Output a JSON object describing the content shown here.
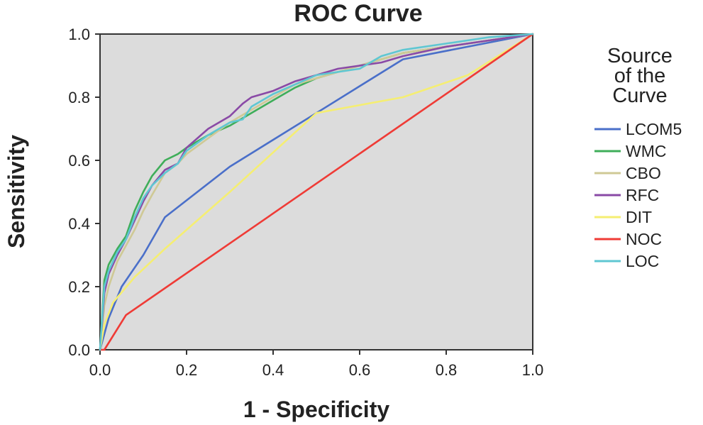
{
  "chart_data": {
    "type": "line",
    "title": "ROC Curve",
    "xlabel": "1 - Specificity",
    "ylabel": "Sensitivity",
    "xlim": [
      0.0,
      1.0
    ],
    "ylim": [
      0.0,
      1.0
    ],
    "xticks": [
      "0.0",
      "0.2",
      "0.4",
      "0.6",
      "0.8",
      "1.0"
    ],
    "yticks": [
      "0.0",
      "0.2",
      "0.4",
      "0.6",
      "0.8",
      "1.0"
    ],
    "grid": false,
    "plot_background": "#dcdcdc",
    "legend": {
      "title_lines": [
        "Source",
        "of the",
        "Curve"
      ],
      "placement": "right"
    },
    "series": [
      {
        "name": "LCOM5",
        "color": "#4a6fc9",
        "x": [
          0,
          0.02,
          0.05,
          0.1,
          0.15,
          0.3,
          0.5,
          0.7,
          1.0
        ],
        "y": [
          0,
          0.1,
          0.2,
          0.3,
          0.42,
          0.58,
          0.75,
          0.92,
          1.0
        ]
      },
      {
        "name": "WMC",
        "color": "#3fae5a",
        "x": [
          0,
          0.01,
          0.02,
          0.04,
          0.06,
          0.08,
          0.1,
          0.12,
          0.15,
          0.18,
          0.2,
          0.25,
          0.3,
          0.35,
          0.4,
          0.45,
          0.5,
          0.55,
          0.6,
          0.65,
          0.7,
          0.8,
          0.9,
          1.0
        ],
        "y": [
          0,
          0.22,
          0.27,
          0.32,
          0.36,
          0.44,
          0.5,
          0.55,
          0.6,
          0.62,
          0.64,
          0.68,
          0.71,
          0.75,
          0.79,
          0.83,
          0.86,
          0.88,
          0.9,
          0.92,
          0.94,
          0.96,
          0.98,
          1.0
        ]
      },
      {
        "name": "CBO",
        "color": "#cfc995",
        "x": [
          0,
          0.01,
          0.02,
          0.04,
          0.06,
          0.08,
          0.1,
          0.12,
          0.15,
          0.18,
          0.2,
          0.25,
          0.3,
          0.35,
          0.4,
          0.45,
          0.5,
          0.55,
          0.6,
          0.65,
          0.7,
          0.8,
          0.9,
          1.0
        ],
        "y": [
          0,
          0.14,
          0.2,
          0.28,
          0.33,
          0.38,
          0.44,
          0.49,
          0.56,
          0.59,
          0.62,
          0.67,
          0.72,
          0.76,
          0.8,
          0.84,
          0.86,
          0.88,
          0.9,
          0.92,
          0.94,
          0.96,
          0.98,
          1.0
        ]
      },
      {
        "name": "RFC",
        "color": "#8a4aa6",
        "x": [
          0,
          0.01,
          0.02,
          0.04,
          0.06,
          0.08,
          0.1,
          0.12,
          0.15,
          0.18,
          0.2,
          0.25,
          0.3,
          0.33,
          0.35,
          0.4,
          0.45,
          0.5,
          0.55,
          0.6,
          0.65,
          0.7,
          0.8,
          0.9,
          1.0
        ],
        "y": [
          0,
          0.18,
          0.24,
          0.3,
          0.35,
          0.41,
          0.47,
          0.52,
          0.57,
          0.59,
          0.64,
          0.7,
          0.74,
          0.78,
          0.8,
          0.82,
          0.85,
          0.87,
          0.89,
          0.9,
          0.91,
          0.93,
          0.96,
          0.98,
          1.0
        ]
      },
      {
        "name": "DIT",
        "color": "#f5ee72",
        "x": [
          0,
          0.01,
          0.03,
          0.08,
          0.15,
          0.3,
          0.5,
          0.7,
          0.85,
          1.0
        ],
        "y": [
          0,
          0.08,
          0.15,
          0.23,
          0.32,
          0.5,
          0.75,
          0.8,
          0.87,
          1.0
        ]
      },
      {
        "name": "NOC",
        "color": "#ef3b36",
        "x": [
          0,
          0.01,
          0.06,
          1.0
        ],
        "y": [
          0,
          0.0,
          0.11,
          1.0
        ]
      },
      {
        "name": "LOC",
        "color": "#5fc7d2",
        "x": [
          0,
          0.01,
          0.02,
          0.04,
          0.06,
          0.08,
          0.1,
          0.12,
          0.15,
          0.18,
          0.2,
          0.25,
          0.3,
          0.33,
          0.35,
          0.4,
          0.45,
          0.5,
          0.55,
          0.6,
          0.65,
          0.7,
          0.8,
          0.9,
          1.0
        ],
        "y": [
          0,
          0.2,
          0.25,
          0.31,
          0.35,
          0.42,
          0.48,
          0.52,
          0.56,
          0.59,
          0.63,
          0.68,
          0.72,
          0.73,
          0.77,
          0.81,
          0.84,
          0.87,
          0.88,
          0.89,
          0.93,
          0.95,
          0.97,
          0.99,
          1.0
        ]
      }
    ]
  }
}
